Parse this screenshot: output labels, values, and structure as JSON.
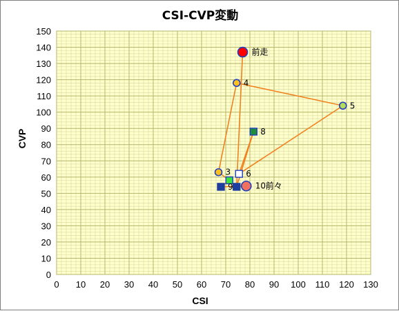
{
  "chart_data": {
    "type": "scatter",
    "title": "CSI-CVP変動",
    "xlabel": "CSI",
    "ylabel": "CVP",
    "xlim": [
      0,
      130
    ],
    "ylim": [
      0,
      150
    ],
    "x_ticks": [
      0,
      10,
      20,
      30,
      40,
      50,
      60,
      70,
      80,
      90,
      100,
      110,
      120,
      130
    ],
    "y_ticks": [
      0,
      10,
      20,
      30,
      40,
      50,
      60,
      70,
      80,
      90,
      100,
      110,
      120,
      130,
      140,
      150
    ],
    "grid": true,
    "plot_background": "#FFFFCC",
    "grid_color": "#B5B56E",
    "line_color": "#F08020",
    "points": [
      {
        "label": "前走",
        "x": 77,
        "y": 137,
        "marker": "circle-large",
        "fill": "#FF0000",
        "stroke": "#1F3FBF"
      },
      {
        "label": "4",
        "x": 74.5,
        "y": 118,
        "marker": "circle",
        "fill": "#FFC020",
        "stroke": "#1F3FBF"
      },
      {
        "label": "5",
        "x": 118.5,
        "y": 104,
        "marker": "circle",
        "fill": "#B5DA5A",
        "stroke": "#1F3FBF"
      },
      {
        "label": "8",
        "x": 81.5,
        "y": 88,
        "marker": "square",
        "fill": "#1E8C3C",
        "stroke": "#1F3FBF"
      },
      {
        "label": "3",
        "x": 67,
        "y": 63,
        "marker": "circle",
        "fill": "#FFC020",
        "stroke": "#1F3FBF"
      },
      {
        "label": "6",
        "x": 75.5,
        "y": 62,
        "marker": "square",
        "fill": "#FFFFFF",
        "stroke": "#1F3FBF"
      },
      {
        "label": "",
        "x": 71.5,
        "y": 58,
        "marker": "square",
        "fill": "#3CE03C",
        "stroke": "#1F3FBF"
      },
      {
        "label": "9",
        "x": 68,
        "y": 54,
        "marker": "square",
        "fill": "#1F3F9F",
        "stroke": "#1F3F9F"
      },
      {
        "label": "",
        "x": 74.5,
        "y": 54,
        "marker": "square",
        "fill": "#1F3F9F",
        "stroke": "#1F3F9F"
      },
      {
        "label": "10",
        "x": 78.5,
        "y": 54.5,
        "marker": "circle-large",
        "fill": "#F07060",
        "stroke": "#1F3FBF"
      }
    ],
    "path_order": [
      "10",
      "9",
      "",
      "3",
      "4",
      "5",
      "6",
      "8",
      "",
      "前走"
    ],
    "extra_labels": [
      {
        "text": "前々",
        "near": "10"
      }
    ]
  }
}
